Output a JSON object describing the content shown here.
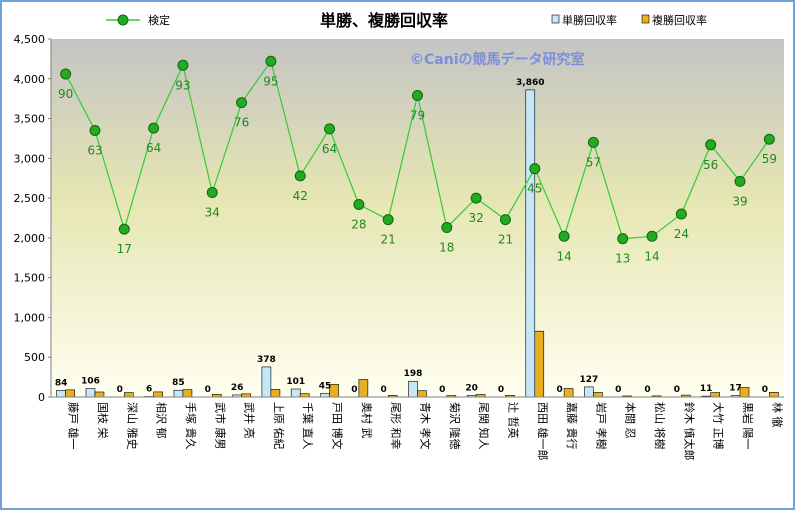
{
  "chart_data": {
    "type": "bar",
    "title": "単勝、複勝回収率",
    "watermark": "©Caniの競馬データ研究室",
    "ylim": [
      0,
      4500
    ],
    "yticks": [
      "0",
      "500",
      "1,000",
      "1,500",
      "2,000",
      "2,500",
      "3,000",
      "3,500",
      "4,000",
      "4,500"
    ],
    "ytick_values": [
      0,
      500,
      1000,
      1500,
      2000,
      2500,
      3000,
      3500,
      4000,
      4500
    ],
    "categories": [
      "藤戸 雄一",
      "国枝 栄",
      "深山 雅史",
      "相沢 郁",
      "手塚 貴久",
      "武市 康男",
      "武井 亮",
      "上原 佑紀",
      "千葉 直人",
      "戸田 博文",
      "奥村 武",
      "尾形 和幸",
      "青木 孝文",
      "菊沢 隆徳",
      "尾関 知人",
      "辻 哲英",
      "西田 雄一郎",
      "嘉藤 貴行",
      "岩戸 孝樹",
      "本間 忍",
      "松山 将樹",
      "鈴木 慎太郎",
      "大竹 正博",
      "黒岩 陽一",
      "林 徹"
    ],
    "series": [
      {
        "name": "単勝回収率",
        "type": "bar",
        "color": "#c6e7f7",
        "values": [
          84,
          106,
          0,
          6,
          85,
          0,
          26,
          378,
          101,
          45,
          0,
          0,
          198,
          0,
          20,
          0,
          3860,
          0,
          127,
          0,
          0,
          0,
          11,
          17,
          0
        ],
        "labels": [
          "84",
          "106",
          "0",
          "6",
          "85",
          "0",
          "26",
          "378",
          "101",
          "45",
          "0",
          "0",
          "198",
          "0",
          "20",
          "0",
          "3,860",
          "0",
          "127",
          "0",
          "0",
          "0",
          "11",
          "17",
          "0"
        ]
      },
      {
        "name": "複勝回収率",
        "type": "bar",
        "color": "#e8b020",
        "values": [
          90,
          63,
          55,
          64,
          93,
          34,
          40,
          95,
          42,
          160,
          220,
          21,
          79,
          18,
          32,
          21,
          827,
          107,
          57,
          13,
          14,
          24,
          56,
          120,
          59
        ]
      },
      {
        "name": "検定",
        "type": "line",
        "color": "#33cc33",
        "values": [
          4060,
          3350,
          2110,
          3380,
          4170,
          2570,
          3700,
          4220,
          2780,
          3370,
          2420,
          2230,
          3790,
          2130,
          2500,
          2230,
          2870,
          2020,
          3200,
          1990,
          2020,
          2300,
          3170,
          2710,
          3240
        ],
        "point_labels": [
          "90",
          "63",
          "17",
          "64",
          "93",
          "34",
          "76",
          "95",
          "42",
          "64",
          "28",
          "21",
          "79",
          "18",
          "32",
          "21",
          "45",
          "14",
          "57",
          "13",
          "14",
          "24",
          "56",
          "39",
          "59"
        ]
      }
    ],
    "legend": {
      "line_label": "検定",
      "bar1_label": "単勝回収率",
      "bar2_label": "複勝回収率",
      "placement": "top"
    },
    "grid": false
  }
}
